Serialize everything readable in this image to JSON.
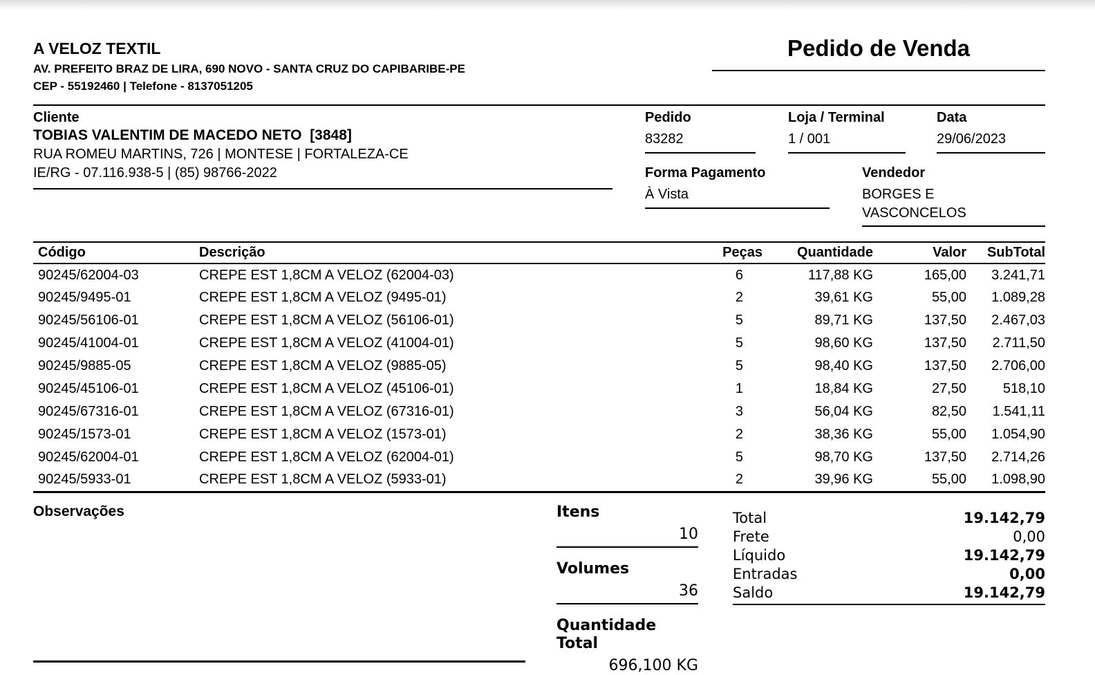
{
  "company": {
    "name": "A VELOZ TEXTIL",
    "address": "AV. PREFEITO BRAZ DE LIRA, 690 NOVO - SANTA CRUZ DO CAPIBARIBE-PE",
    "contact": "CEP - 55192460 | Telefone - 8137051205"
  },
  "document": {
    "title": "Pedido de Venda"
  },
  "client": {
    "label": "Cliente",
    "name": "TOBIAS VALENTIM DE MACEDO NETO  [3848]",
    "address": "RUA ROMEU MARTINS, 726 | MONTESE | FORTALEZA-CE",
    "ie_rg": "IE/RG - 07.116.938-5 | (85) 98766-2022"
  },
  "order": {
    "pedido_label": "Pedido",
    "pedido": "83282",
    "loja_terminal_label": "Loja / Terminal",
    "loja_terminal": "1 / 001",
    "data_label": "Data",
    "data": "29/06/2023",
    "forma_pagamento_label": "Forma Pagamento",
    "forma_pagamento": "À Vista",
    "vendedor_label": "Vendedor",
    "vendedor": "BORGES E VASCONCELOS"
  },
  "items_table": {
    "headers": {
      "codigo": "Código",
      "descricao": "Descrição",
      "pecas": "Peças",
      "quantidade": "Quantidade",
      "valor": "Valor",
      "subtotal": "SubTotal"
    },
    "rows": [
      {
        "codigo": "90245/62004-03",
        "descricao": "CREPE EST 1,8CM A VELOZ (62004-03)",
        "pecas": "6",
        "quantidade": "117,88 KG",
        "valor": "165,00",
        "subtotal": "3.241,71"
      },
      {
        "codigo": "90245/9495-01",
        "descricao": "CREPE EST 1,8CM A VELOZ (9495-01)",
        "pecas": "2",
        "quantidade": "39,61 KG",
        "valor": "55,00",
        "subtotal": "1.089,28"
      },
      {
        "codigo": "90245/56106-01",
        "descricao": "CREPE EST 1,8CM A VELOZ (56106-01)",
        "pecas": "5",
        "quantidade": "89,71 KG",
        "valor": "137,50",
        "subtotal": "2.467,03"
      },
      {
        "codigo": "90245/41004-01",
        "descricao": "CREPE EST 1,8CM A VELOZ (41004-01)",
        "pecas": "5",
        "quantidade": "98,60 KG",
        "valor": "137,50",
        "subtotal": "2.711,50"
      },
      {
        "codigo": "90245/9885-05",
        "descricao": "CREPE EST 1,8CM A VELOZ (9885-05)",
        "pecas": "5",
        "quantidade": "98,40 KG",
        "valor": "137,50",
        "subtotal": "2.706,00"
      },
      {
        "codigo": "90245/45106-01",
        "descricao": "CREPE EST 1,8CM A VELOZ (45106-01)",
        "pecas": "1",
        "quantidade": "18,84 KG",
        "valor": "27,50",
        "subtotal": "518,10"
      },
      {
        "codigo": "90245/67316-01",
        "descricao": "CREPE EST 1,8CM A VELOZ (67316-01)",
        "pecas": "3",
        "quantidade": "56,04 KG",
        "valor": "82,50",
        "subtotal": "1.541,11"
      },
      {
        "codigo": "90245/1573-01",
        "descricao": "CREPE EST 1,8CM A VELOZ (1573-01)",
        "pecas": "2",
        "quantidade": "38,36 KG",
        "valor": "55,00",
        "subtotal": "1.054,90"
      },
      {
        "codigo": "90245/62004-01",
        "descricao": "CREPE EST 1,8CM A VELOZ (62004-01)",
        "pecas": "5",
        "quantidade": "98,70 KG",
        "valor": "137,50",
        "subtotal": "2.714,26"
      },
      {
        "codigo": "90245/5933-01",
        "descricao": "CREPE EST 1,8CM A VELOZ (5933-01)",
        "pecas": "2",
        "quantidade": "39,96 KG",
        "valor": "55,00",
        "subtotal": "1.098,90"
      }
    ]
  },
  "summary": {
    "observacoes_label": "Observações",
    "itens_label": "Itens",
    "itens": "10",
    "volumes_label": "Volumes",
    "volumes": "36",
    "quantidade_total_label": "Quantidade Total",
    "quantidade_total": "696,100 KG",
    "totals": [
      {
        "label": "Total",
        "value": "19.142,79",
        "bold": true
      },
      {
        "label": "Frete",
        "value": "0,00",
        "bold": false
      },
      {
        "label": "Líquido",
        "value": "19.142,79",
        "bold": true
      },
      {
        "label": "Entradas",
        "value": "0,00",
        "bold": true
      },
      {
        "label": "Saldo",
        "value": "19.142,79",
        "bold": true
      }
    ]
  }
}
